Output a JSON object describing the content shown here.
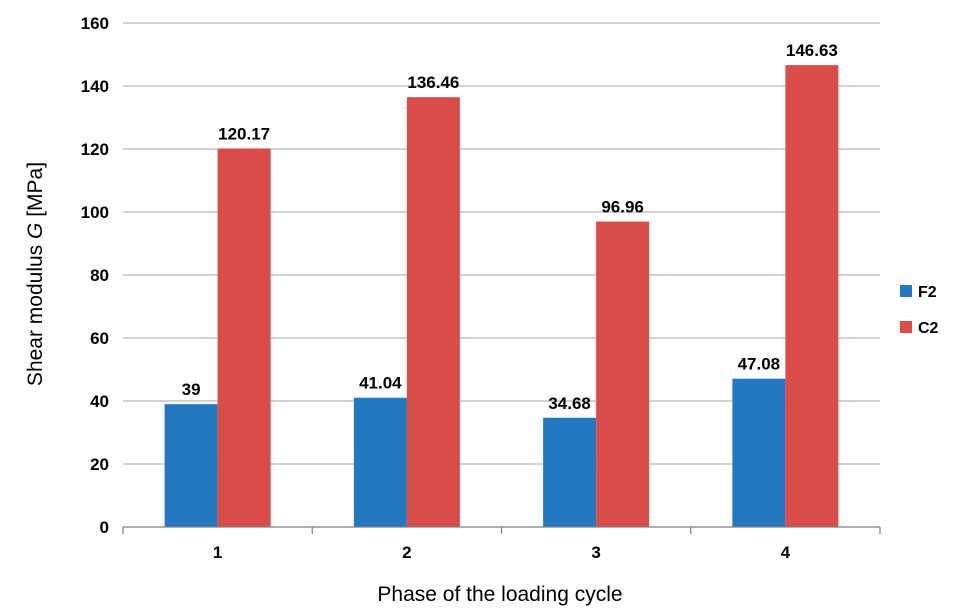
{
  "chart_data": {
    "type": "bar",
    "categories": [
      "1",
      "2",
      "3",
      "4"
    ],
    "series": [
      {
        "name": "F2",
        "values": [
          39,
          41.04,
          34.68,
          47.08
        ],
        "color": "#2279c2"
      },
      {
        "name": "C2",
        "values": [
          120.17,
          136.46,
          96.96,
          146.63
        ],
        "color": "#d94c48"
      }
    ],
    "data_labels": [
      [
        "39",
        "41.04",
        "34.68",
        "47.08"
      ],
      [
        "120.17",
        "136.46",
        "96.96",
        "146.63"
      ]
    ],
    "xlabel": "Phase of the loading cycle",
    "ylabel_prefix": "Shear modulus ",
    "ylabel_symbol": "G",
    "ylabel_suffix": " [MPa]",
    "ylim": [
      0,
      160
    ],
    "yticks": [
      0,
      20,
      40,
      60,
      80,
      100,
      120,
      140,
      160
    ],
    "grid": true,
    "legend_position": "right",
    "gridline_color": "#a6a6a6",
    "axis_color": "#7f7f7f"
  }
}
